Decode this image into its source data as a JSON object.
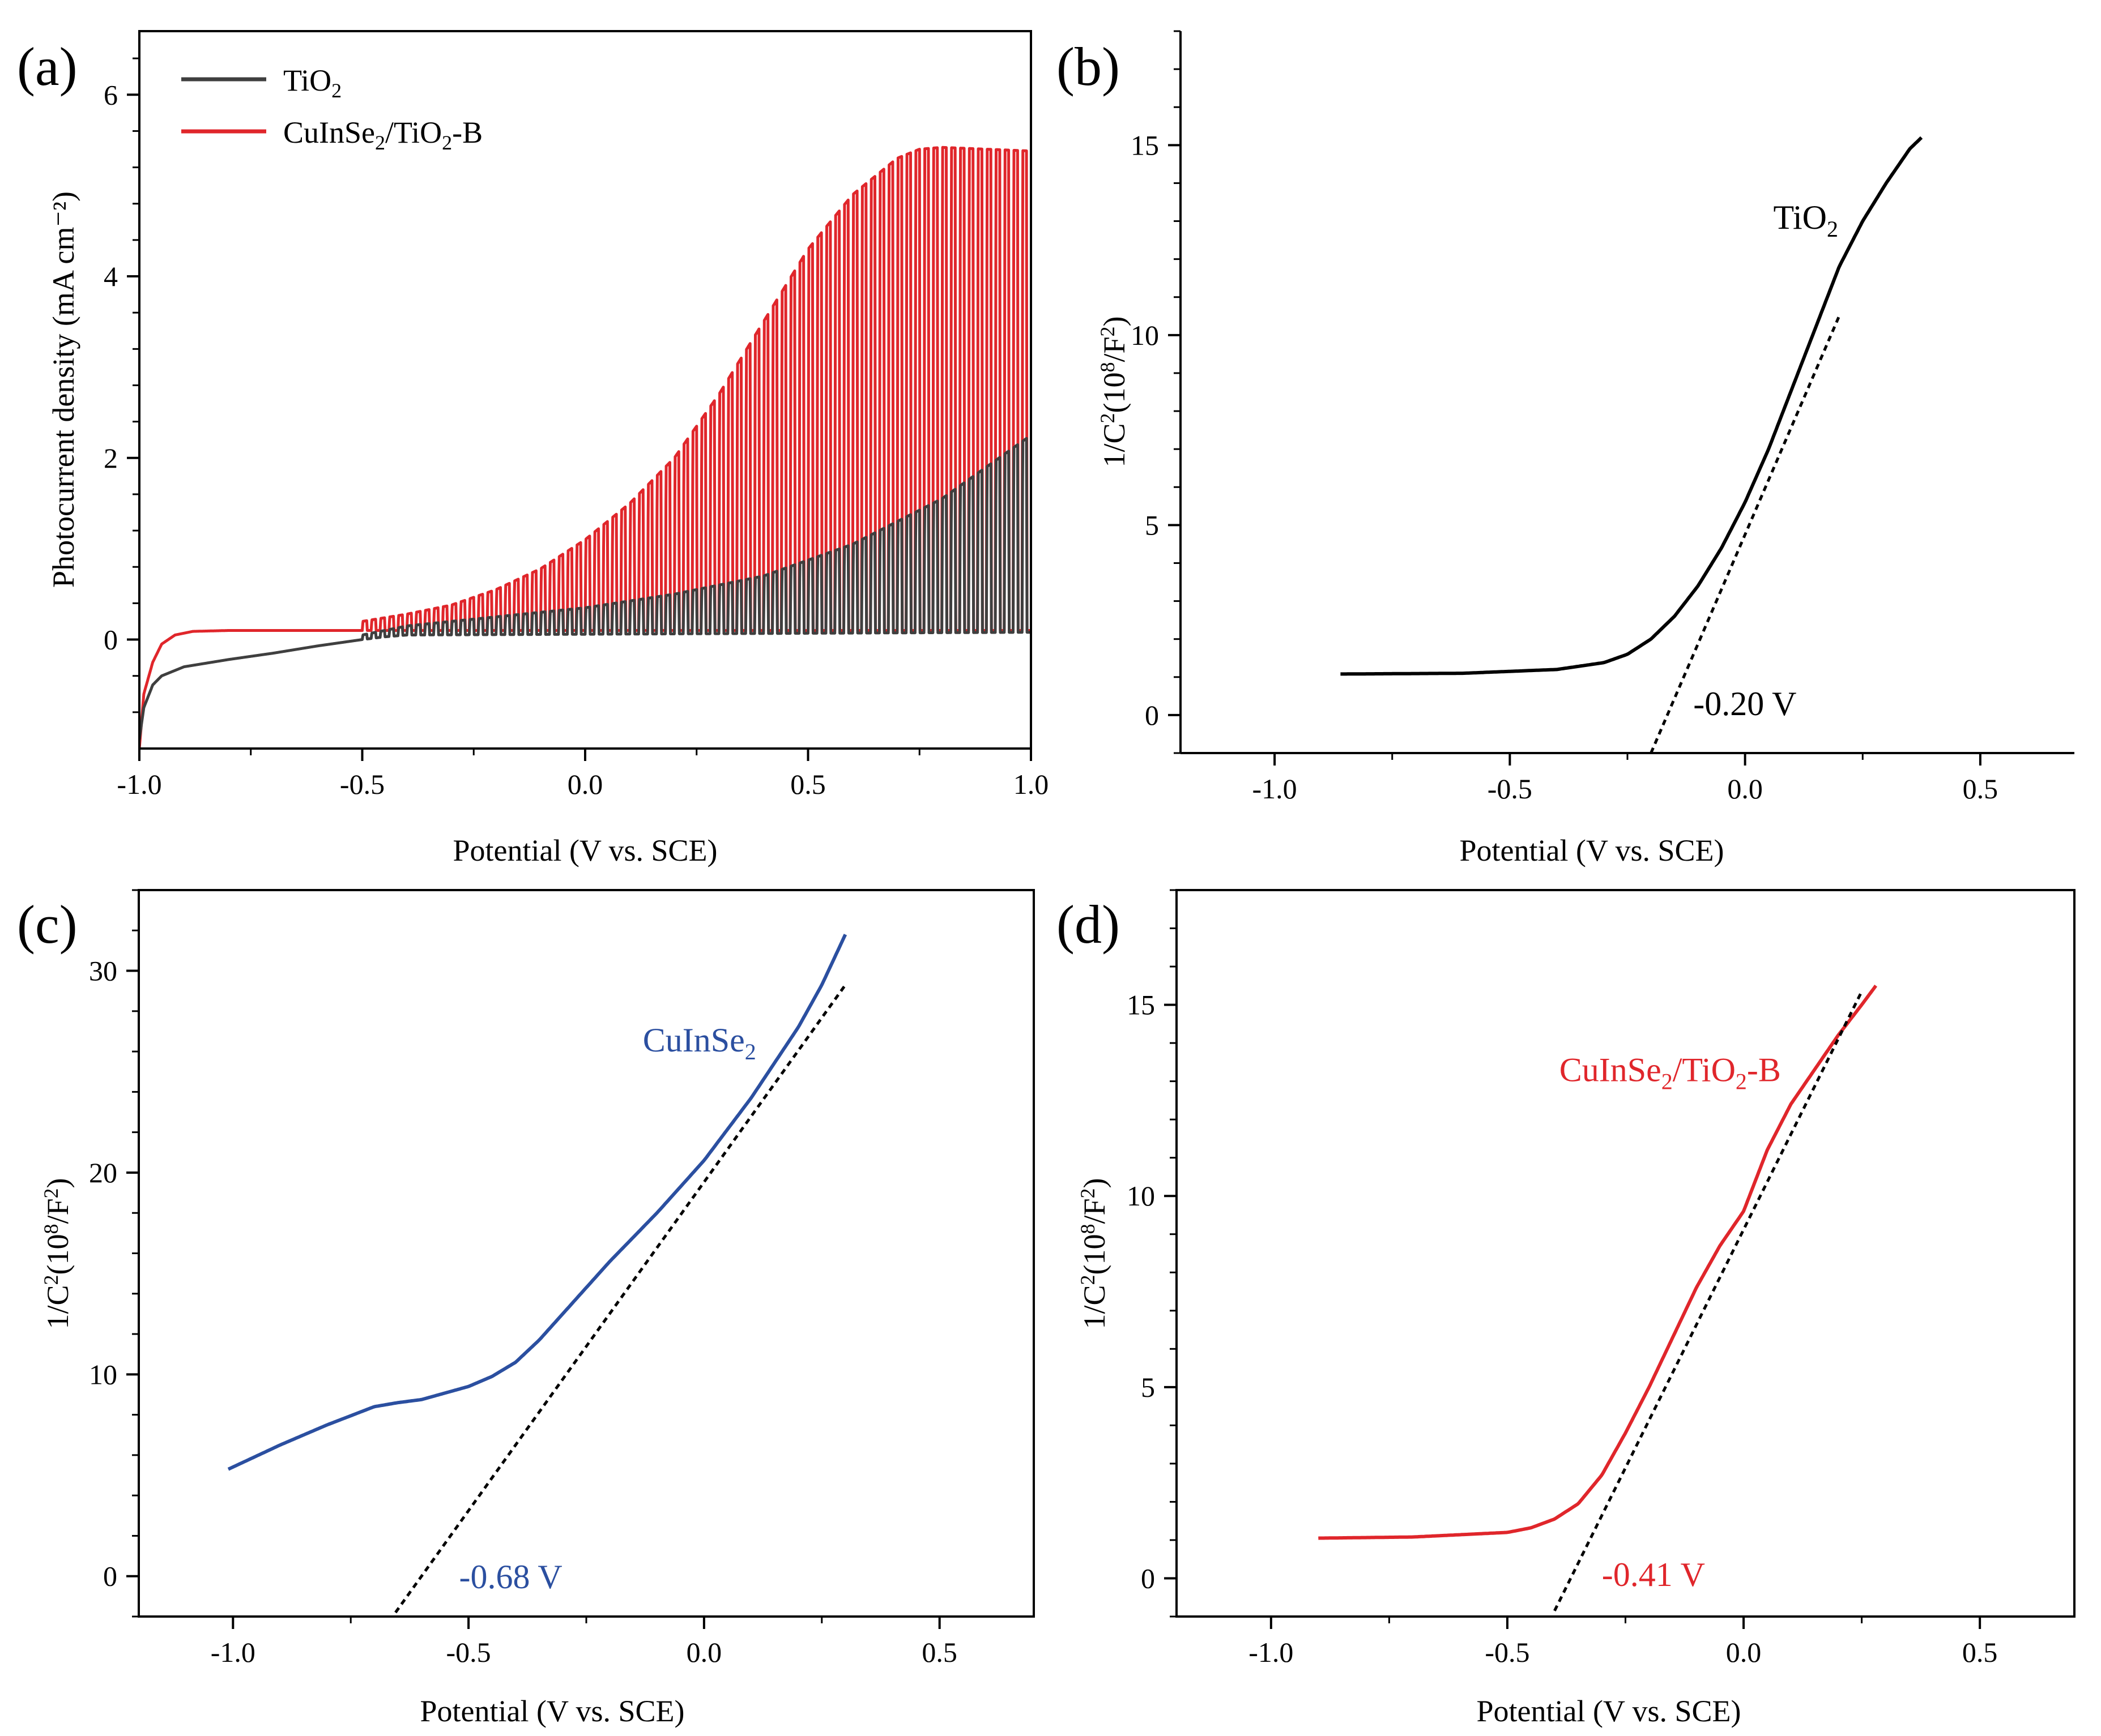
{
  "figure_colors": {
    "tio2": "#3f3f3f",
    "cuinse2": "#2b4fa0",
    "composite": "#e0262b",
    "fit": "#000000"
  },
  "chart_data": [
    {
      "id": "a",
      "panel_label": "(a)",
      "type": "line",
      "title": "",
      "xlabel": "Potential (V vs. SCE)",
      "ylabel": "Photocurrent density (mA cm⁻²)",
      "xlim": [
        -1.0,
        1.0
      ],
      "ylim": [
        -1.2,
        6.7
      ],
      "xticks": [
        -1.0,
        -0.5,
        0.0,
        0.5,
        1.0
      ],
      "xtick_labels": [
        "-1.0",
        "-0.5",
        "0.0",
        "0.5",
        "1.0"
      ],
      "yticks": [
        0,
        2,
        4,
        6
      ],
      "ytick_labels": [
        "0",
        "2",
        "4",
        "6"
      ],
      "legend_position": "top-left",
      "chopped_light": {
        "period_V": 0.02
      },
      "series": [
        {
          "name": "TiO2",
          "label_main": "TiO",
          "label_sub": "2",
          "color": "#3f3f3f",
          "dark_baseline": {
            "x": [
              -1.0,
              -0.99,
              -0.97,
              -0.95,
              -0.9,
              -0.8,
              -0.7,
              -0.6,
              -0.5,
              -0.45,
              -0.4,
              1.0
            ],
            "y": [
              -1.1,
              -0.75,
              -0.5,
              -0.4,
              -0.3,
              -0.22,
              -0.15,
              -0.07,
              0.0,
              0.03,
              0.05,
              0.08
            ]
          },
          "light_envelope": {
            "x": [
              -0.5,
              -0.4,
              -0.2,
              0.0,
              0.2,
              0.4,
              0.6,
              0.8,
              1.0
            ],
            "y": [
              0.05,
              0.15,
              0.25,
              0.35,
              0.5,
              0.7,
              1.05,
              1.55,
              2.25
            ]
          }
        },
        {
          "name": "CuInSe2/TiO2-B",
          "label_parts": [
            "CuInSe",
            "2",
            "/TiO",
            "2",
            "-B"
          ],
          "color": "#e0262b",
          "dark_baseline": {
            "x": [
              -1.0,
              -0.99,
              -0.97,
              -0.95,
              -0.92,
              -0.88,
              -0.8,
              -0.6,
              -0.5,
              1.0
            ],
            "y": [
              -1.2,
              -0.6,
              -0.25,
              -0.05,
              0.05,
              0.09,
              0.1,
              0.1,
              0.1,
              0.1
            ]
          },
          "light_envelope": {
            "x": [
              -0.5,
              -0.4,
              -0.3,
              -0.2,
              -0.1,
              0.0,
              0.1,
              0.2,
              0.3,
              0.4,
              0.5,
              0.6,
              0.7,
              0.75,
              0.8,
              0.9,
              1.0
            ],
            "y": [
              0.2,
              0.28,
              0.38,
              0.55,
              0.78,
              1.1,
              1.5,
              2.0,
              2.7,
              3.5,
              4.3,
              4.9,
              5.3,
              5.4,
              5.42,
              5.4,
              5.38
            ]
          }
        }
      ]
    },
    {
      "id": "b",
      "panel_label": "(b)",
      "type": "line",
      "title": "",
      "xlabel": "Potential (V vs. SCE)",
      "ylabel_parts": [
        "1/C",
        "2",
        "(10",
        "8",
        "/F",
        "2",
        ")"
      ],
      "xlim": [
        -1.2,
        0.7
      ],
      "ylim": [
        -1.0,
        18.0
      ],
      "xticks": [
        -1.0,
        -0.5,
        0.0,
        0.5
      ],
      "xtick_labels": [
        "-1.0",
        "-0.5",
        "0.0",
        "0.5"
      ],
      "yticks": [
        0,
        5,
        10,
        15
      ],
      "ytick_labels": [
        "0",
        "5",
        "10",
        "15"
      ],
      "curve_label": {
        "main": "TiO",
        "sub": "2",
        "x": 0.06,
        "y": 12.8
      },
      "intercept_label": {
        "text": "-0.20 V",
        "x": -0.11,
        "y": 0.0
      },
      "series": [
        {
          "name": "TiO2",
          "color": "#000000",
          "x": [
            -0.86,
            -0.6,
            -0.4,
            -0.3,
            -0.25,
            -0.2,
            -0.15,
            -0.1,
            -0.05,
            0.0,
            0.05,
            0.1,
            0.15,
            0.2,
            0.25,
            0.3,
            0.35,
            0.375
          ],
          "y": [
            1.08,
            1.1,
            1.2,
            1.38,
            1.6,
            2.0,
            2.6,
            3.4,
            4.4,
            5.6,
            7.0,
            8.6,
            10.2,
            11.8,
            13.0,
            14.0,
            14.9,
            15.2
          ]
        }
      ],
      "fit_line": {
        "x": [
          -0.2,
          0.2
        ],
        "y": [
          -1.0,
          10.5
        ],
        "color": "#000000",
        "style": "dashed"
      }
    },
    {
      "id": "c",
      "panel_label": "(c)",
      "type": "line",
      "title": "",
      "xlabel": "Potential (V vs. SCE)",
      "ylabel_parts": [
        "1/C",
        "2",
        "(10",
        "8",
        "/F",
        "2",
        ")"
      ],
      "xlim": [
        -1.2,
        0.7
      ],
      "ylim": [
        -2.0,
        34.0
      ],
      "xticks": [
        -1.0,
        -0.5,
        0.0,
        0.5
      ],
      "xtick_labels": [
        "-1.0",
        "-0.5",
        "0.0",
        "0.5"
      ],
      "yticks": [
        0,
        10,
        20,
        30
      ],
      "ytick_labels": [
        "0",
        "10",
        "20",
        "30"
      ],
      "curve_label": {
        "main": "CuInSe",
        "sub": "2",
        "x": -0.13,
        "y": 26.0
      },
      "intercept_label": {
        "text": "-0.68 V",
        "x": -0.52,
        "y": -0.6
      },
      "series": [
        {
          "name": "CuInSe2",
          "color": "#2b4fa0",
          "x": [
            -1.01,
            -0.9,
            -0.8,
            -0.7,
            -0.65,
            -0.6,
            -0.5,
            -0.45,
            -0.4,
            -0.35,
            -0.3,
            -0.2,
            -0.1,
            0.0,
            0.1,
            0.2,
            0.25,
            0.3
          ],
          "y": [
            5.3,
            6.5,
            7.5,
            8.4,
            8.6,
            8.75,
            9.4,
            9.9,
            10.6,
            11.7,
            13.0,
            15.6,
            18.0,
            20.6,
            23.7,
            27.2,
            29.3,
            31.8
          ]
        }
      ],
      "fit_line": {
        "x": [
          -0.655,
          0.3
        ],
        "y": [
          -1.8,
          29.3
        ],
        "color": "#000000",
        "style": "dashed"
      }
    },
    {
      "id": "d",
      "panel_label": "(d)",
      "type": "line",
      "title": "",
      "xlabel": "Potential (V vs. SCE)",
      "ylabel_parts": [
        "1/C",
        "2",
        "(10",
        "8",
        "/F",
        "2",
        ")"
      ],
      "xlim": [
        -1.2,
        0.7
      ],
      "ylim": [
        -1.0,
        18.0
      ],
      "xticks": [
        -1.0,
        -0.5,
        0.0,
        0.5
      ],
      "xtick_labels": [
        "-1.0",
        "-0.5",
        "0.0",
        "0.5"
      ],
      "yticks": [
        0,
        5,
        10,
        15
      ],
      "ytick_labels": [
        "0",
        "5",
        "10",
        "15"
      ],
      "curve_label": {
        "parts": [
          "CuInSe",
          "2",
          "/TiO",
          "2",
          "-B"
        ],
        "x": -0.39,
        "y": 13.0
      },
      "intercept_label": {
        "text": "-0.41 V",
        "x": -0.3,
        "y": -0.2
      },
      "series": [
        {
          "name": "CuInSe2/TiO2-B",
          "color": "#e0262b",
          "x": [
            -0.9,
            -0.7,
            -0.5,
            -0.45,
            -0.4,
            -0.35,
            -0.3,
            -0.25,
            -0.2,
            -0.15,
            -0.1,
            -0.05,
            0.0,
            0.05,
            0.1,
            0.15,
            0.2,
            0.25,
            0.28
          ],
          "y": [
            1.05,
            1.08,
            1.2,
            1.32,
            1.55,
            1.95,
            2.7,
            3.8,
            5.0,
            6.3,
            7.6,
            8.7,
            9.6,
            11.2,
            12.4,
            13.3,
            14.2,
            15.0,
            15.5
          ]
        }
      ],
      "fit_line": {
        "x": [
          -0.4,
          0.25
        ],
        "y": [
          -0.85,
          15.35
        ],
        "color": "#000000",
        "style": "dashed"
      }
    }
  ]
}
